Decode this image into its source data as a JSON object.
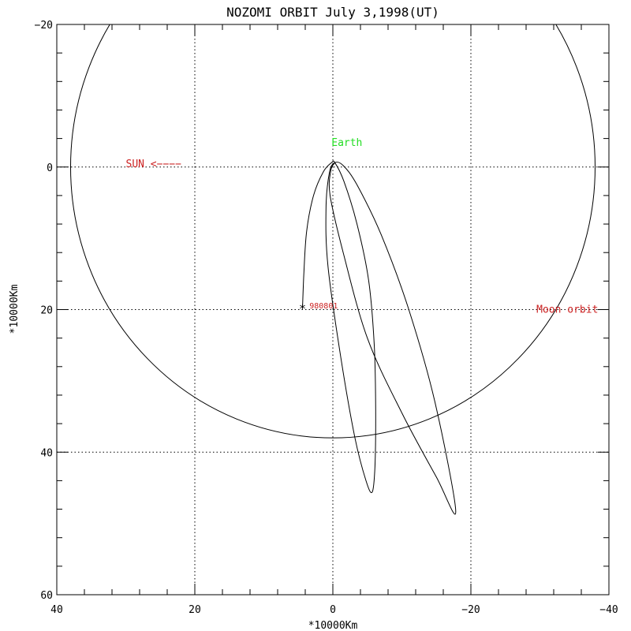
{
  "chart_data": {
    "type": "line",
    "title": "NOZOMI ORBIT July 3,1998(UT)",
    "xlabel": "*10000Km",
    "ylabel": "*10000Km",
    "xlim": [
      40,
      -40
    ],
    "ylim": [
      -20,
      60
    ],
    "x_ticks": [
      40,
      20,
      0,
      -20,
      -40
    ],
    "x_tick_labels": [
      "40",
      "20",
      "0",
      "−20",
      "−40"
    ],
    "y_ticks": [
      -20,
      0,
      20,
      40,
      60
    ],
    "y_tick_labels": [
      "−20",
      "0",
      "20",
      "40",
      "60"
    ],
    "grid": true,
    "moon_orbit": {
      "center": [
        0,
        0
      ],
      "radius": 38
    },
    "series": [
      {
        "points": [
          [
            4.4,
            19.8
          ],
          [
            4.2,
            15.0
          ],
          [
            3.8,
            9.0
          ],
          [
            2.8,
            4.0
          ],
          [
            1.4,
            0.7
          ],
          [
            0.2,
            -0.6
          ],
          [
            -0.3,
            -0.6
          ],
          [
            -1.6,
            2.0
          ],
          [
            -3.5,
            8.0
          ],
          [
            -5.2,
            16.0
          ],
          [
            -6.0,
            25.0
          ],
          [
            -6.2,
            34.0
          ],
          [
            -6.1,
            42.0
          ],
          [
            -5.7,
            45.6
          ],
          [
            -4.8,
            44.0
          ],
          [
            -3.2,
            38.0
          ],
          [
            -1.2,
            27.0
          ],
          [
            0.7,
            14.0
          ],
          [
            1.0,
            6.0
          ],
          [
            0.5,
            0.8
          ],
          [
            -0.3,
            -0.6
          ],
          [
            -1.5,
            -0.2
          ],
          [
            -3.5,
            2.5
          ],
          [
            -7.0,
            9.5
          ],
          [
            -11.0,
            20.0
          ],
          [
            -14.8,
            33.0
          ],
          [
            -17.8,
            48.3
          ],
          [
            -15.0,
            43.5
          ],
          [
            -10.0,
            34.5
          ],
          [
            -5.0,
            24.0
          ],
          [
            -1.5,
            12.0
          ],
          [
            0.4,
            4.0
          ],
          [
            0.3,
            0.5
          ],
          [
            -0.3,
            -0.6
          ]
        ]
      }
    ],
    "annotations": [
      {
        "text": "Earth",
        "x": 0.2,
        "y": -3.4,
        "color": "#22dd22"
      },
      {
        "text": "SUN <−−−−",
        "x": 30.0,
        "y": -0.4,
        "color": "#cc2222"
      },
      {
        "text": "980801",
        "x": 3.4,
        "y": 19.4,
        "color": "#cc2222"
      },
      {
        "text": "Moon orbit",
        "x": -29.5,
        "y": 20.0,
        "color": "#cc2222"
      }
    ],
    "start_marker": {
      "symbol": "*",
      "x": 4.4,
      "y": 19.8
    }
  }
}
